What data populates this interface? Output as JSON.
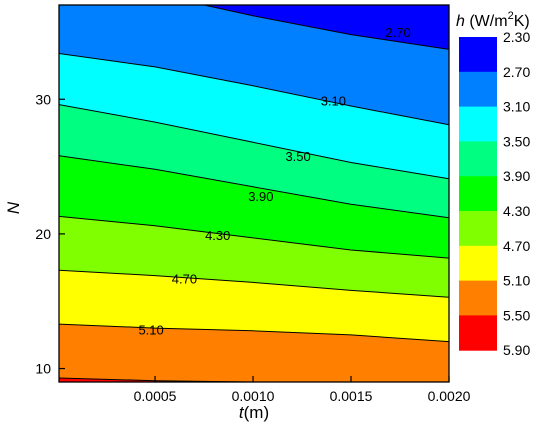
{
  "chart_data": {
    "type": "contour",
    "xlabel": "t",
    "xlabel_unit": "(m)",
    "ylabel": "N",
    "xlim": [
      1e-05,
      0.002
    ],
    "ylim": [
      9,
      37
    ],
    "x_ticks": [
      0.0005,
      0.001,
      0.0015,
      0.002
    ],
    "x_tick_labels": [
      "0.0005",
      "0.0010",
      "0.0015",
      "0.0020"
    ],
    "y_ticks": [
      10,
      20,
      30
    ],
    "y_tick_labels": [
      "10",
      "20",
      "30"
    ],
    "legend": {
      "title_var": "h",
      "title_unit_prefix": " (W/m",
      "title_unit_sup": "2",
      "title_unit_suffix": "K)",
      "placement": "right"
    },
    "levels": [
      2.3,
      2.7,
      3.1,
      3.5,
      3.9,
      4.3,
      4.7,
      5.1,
      5.5,
      5.9
    ],
    "level_labels": [
      "2.30",
      "2.70",
      "3.10",
      "3.50",
      "3.90",
      "4.30",
      "4.70",
      "5.10",
      "5.50",
      "5.90"
    ],
    "band_colors": [
      "#0000FF",
      "#0080FF",
      "#00FFFF",
      "#00FF80",
      "#00FF00",
      "#80FF00",
      "#FFFF00",
      "#FF8000",
      "#FF0000"
    ],
    "contours": [
      {
        "level": "2.70",
        "points": [
          [
            0.00075,
            37
          ],
          [
            0.001,
            36.2
          ],
          [
            0.0015,
            34.8
          ],
          [
            0.002,
            33.7
          ]
        ]
      },
      {
        "level": "3.10",
        "points": [
          [
            1e-05,
            33.4
          ],
          [
            0.0005,
            32.4
          ],
          [
            0.001,
            31.0
          ],
          [
            0.0015,
            29.5
          ],
          [
            0.002,
            28.1
          ]
        ]
      },
      {
        "level": "3.50",
        "points": [
          [
            1e-05,
            29.6
          ],
          [
            0.0005,
            28.3
          ],
          [
            0.001,
            26.8
          ],
          [
            0.0015,
            25.3
          ],
          [
            0.002,
            24.1
          ]
        ]
      },
      {
        "level": "3.90",
        "points": [
          [
            1e-05,
            25.8
          ],
          [
            0.0005,
            24.8
          ],
          [
            0.001,
            23.5
          ],
          [
            0.0015,
            22.2
          ],
          [
            0.002,
            21.2
          ]
        ]
      },
      {
        "level": "4.30",
        "points": [
          [
            1e-05,
            21.3
          ],
          [
            0.0005,
            20.6
          ],
          [
            0.001,
            19.7
          ],
          [
            0.0015,
            18.8
          ],
          [
            0.002,
            18.2
          ]
        ]
      },
      {
        "level": "4.70",
        "points": [
          [
            1e-05,
            17.3
          ],
          [
            0.0005,
            16.9
          ],
          [
            0.001,
            16.4
          ],
          [
            0.0015,
            15.8
          ],
          [
            0.002,
            15.3
          ]
        ]
      },
      {
        "level": "5.10",
        "points": [
          [
            1e-05,
            13.3
          ],
          [
            0.0005,
            13.0
          ],
          [
            0.001,
            12.8
          ],
          [
            0.0015,
            12.5
          ],
          [
            0.002,
            12.0
          ]
        ]
      },
      {
        "level": "5.50",
        "points": [
          [
            1e-05,
            9.3
          ],
          [
            0.0005,
            9.1
          ],
          [
            0.001,
            9.0
          ]
        ]
      }
    ],
    "contour_labels": [
      {
        "text": "2.70",
        "x": 0.00174,
        "y": 35.0
      },
      {
        "text": "3.10",
        "x": 0.00141,
        "y": 29.9
      },
      {
        "text": "3.50",
        "x": 0.00123,
        "y": 25.8
      },
      {
        "text": "3.90",
        "x": 0.00104,
        "y": 22.8
      },
      {
        "text": "4.30",
        "x": 0.00082,
        "y": 19.9
      },
      {
        "text": "4.70",
        "x": 0.00065,
        "y": 16.7
      },
      {
        "text": "5.10",
        "x": 0.00048,
        "y": 12.9
      }
    ]
  }
}
